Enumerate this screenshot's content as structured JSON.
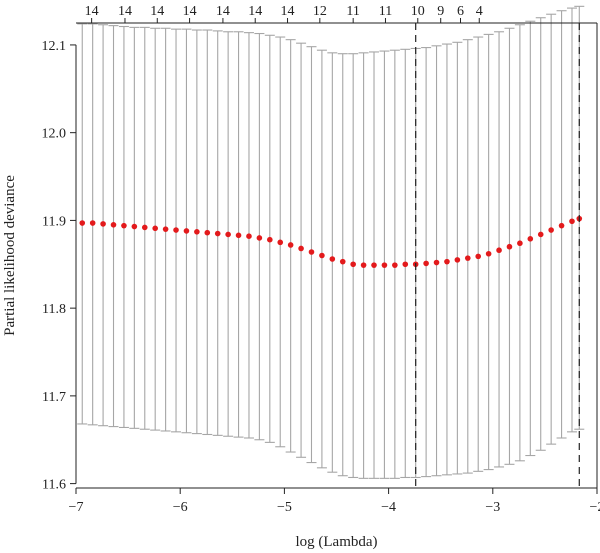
{
  "chart_data": {
    "type": "scatter",
    "title": "",
    "xlabel": "log (Lambda)",
    "ylabel": "Partial likelihood deviance",
    "xlim": [
      -7.0,
      -2.0
    ],
    "ylim": [
      11.595,
      12.125
    ],
    "x_ticks": [
      -7,
      -6,
      -5,
      -4,
      -3,
      -2
    ],
    "y_ticks": [
      11.6,
      11.7,
      11.8,
      11.9,
      12.0,
      12.1
    ],
    "x_tick_labels": [
      "−7",
      "−6",
      "−5",
      "−4",
      "−3",
      "−2"
    ],
    "y_tick_labels": [
      "11.6",
      "11.7",
      "11.8",
      "11.9",
      "12.0",
      "12.1"
    ],
    "top_axis_labels": [
      {
        "x": -6.85,
        "label": "14"
      },
      {
        "x": -6.53,
        "label": "14"
      },
      {
        "x": -6.22,
        "label": "14"
      },
      {
        "x": -5.91,
        "label": "14"
      },
      {
        "x": -5.59,
        "label": "14"
      },
      {
        "x": -5.28,
        "label": "14"
      },
      {
        "x": -4.97,
        "label": "14"
      },
      {
        "x": -4.66,
        "label": "12"
      },
      {
        "x": -4.34,
        "label": "11"
      },
      {
        "x": -4.03,
        "label": "11"
      },
      {
        "x": -3.72,
        "label": "10"
      },
      {
        "x": -3.5,
        "label": "9"
      },
      {
        "x": -3.31,
        "label": "6"
      },
      {
        "x": -3.13,
        "label": "4"
      }
    ],
    "vlines": [
      -3.74,
      -2.17
    ],
    "grid": false,
    "legend": "none",
    "colors": {
      "points": "#e31a1c",
      "error_bars": "#a6a6a6",
      "axis": "#222222",
      "vlines": "#222222"
    },
    "series": [
      {
        "x": [
          -6.94,
          -6.84,
          -6.74,
          -6.64,
          -6.54,
          -6.44,
          -6.34,
          -6.24,
          -6.14,
          -6.04,
          -5.94,
          -5.84,
          -5.74,
          -5.64,
          -5.54,
          -5.44,
          -5.34,
          -5.24,
          -5.14,
          -5.04,
          -4.94,
          -4.84,
          -4.74,
          -4.64,
          -4.54,
          -4.44,
          -4.34,
          -4.24,
          -4.14,
          -4.04,
          -3.94,
          -3.84,
          -3.74,
          -3.64,
          -3.54,
          -3.44,
          -3.34,
          -3.24,
          -3.14,
          -3.04,
          -2.94,
          -2.84,
          -2.74,
          -2.64,
          -2.54,
          -2.44,
          -2.34,
          -2.24,
          -2.17
        ],
        "y": [
          11.897,
          11.897,
          11.896,
          11.895,
          11.894,
          11.893,
          11.892,
          11.891,
          11.89,
          11.889,
          11.888,
          11.887,
          11.886,
          11.885,
          11.884,
          11.883,
          11.882,
          11.88,
          11.878,
          11.875,
          11.872,
          11.868,
          11.864,
          11.86,
          11.856,
          11.853,
          11.85,
          11.849,
          11.849,
          11.849,
          11.849,
          11.85,
          11.85,
          11.851,
          11.852,
          11.853,
          11.855,
          11.857,
          11.859,
          11.862,
          11.866,
          11.87,
          11.874,
          11.879,
          11.884,
          11.889,
          11.894,
          11.899,
          11.902
        ],
        "lower": [
          11.668,
          11.667,
          11.666,
          11.665,
          11.664,
          11.663,
          11.662,
          11.661,
          11.66,
          11.659,
          11.658,
          11.657,
          11.656,
          11.655,
          11.654,
          11.653,
          11.652,
          11.65,
          11.647,
          11.642,
          11.636,
          11.63,
          11.624,
          11.618,
          11.613,
          11.609,
          11.607,
          11.606,
          11.606,
          11.606,
          11.606,
          11.607,
          11.607,
          11.608,
          11.609,
          11.61,
          11.611,
          11.612,
          11.614,
          11.616,
          11.619,
          11.622,
          11.626,
          11.632,
          11.638,
          11.645,
          11.652,
          11.659,
          11.662
        ],
        "upper": [
          12.124,
          12.124,
          12.123,
          12.122,
          12.121,
          12.12,
          12.12,
          12.119,
          12.119,
          12.118,
          12.118,
          12.117,
          12.117,
          12.116,
          12.115,
          12.115,
          12.114,
          12.113,
          12.111,
          12.109,
          12.106,
          12.102,
          12.098,
          12.094,
          12.091,
          12.09,
          12.09,
          12.091,
          12.092,
          12.093,
          12.094,
          12.095,
          12.096,
          12.097,
          12.099,
          12.101,
          12.103,
          12.106,
          12.109,
          12.112,
          12.115,
          12.119,
          12.123,
          12.127,
          12.131,
          12.135,
          12.139,
          12.142,
          12.144
        ]
      }
    ]
  }
}
